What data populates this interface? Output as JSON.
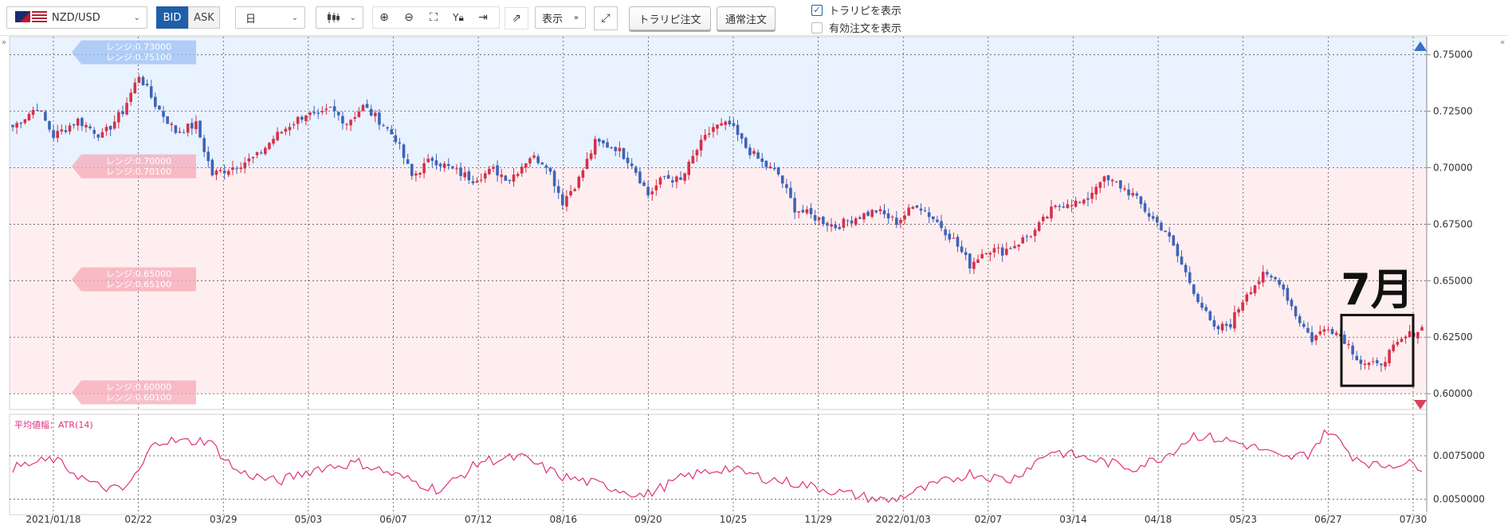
{
  "toolbar": {
    "pair_label": "NZD/USD",
    "bid_label": "BID",
    "ask_label": "ASK",
    "timeframe_value": "日",
    "display_label": "表示",
    "tp_order_label": "トラリピ注文",
    "normal_order_label": "通常注文",
    "show_trap_label": "トラリピを表示",
    "show_active_label": "有効注文を表示"
  },
  "chart": {
    "y_ticks": [
      "0.75000",
      "0.72500",
      "0.70000",
      "0.67500",
      "0.65000",
      "0.62500",
      "0.60000"
    ],
    "x_ticks": [
      "2021/01/18",
      "02/22",
      "03/29",
      "05/03",
      "06/07",
      "07/12",
      "08/16",
      "09/20",
      "10/25",
      "11/29",
      "2022/01/03",
      "02/07",
      "03/14",
      "04/18",
      "05/23",
      "06/27",
      "07/30"
    ],
    "annotation": "7月",
    "range_tags": [
      {
        "line1": "レンジ:0.73000",
        "line2": "レンジ:0.75100"
      },
      {
        "line1": "レンジ:0.70000",
        "line2": "レンジ:0.70100"
      },
      {
        "line1": "レンジ:0.65000",
        "line2": "レンジ:0.65100"
      },
      {
        "line1": "レンジ:0.60000",
        "line2": "レンジ:0.60100"
      }
    ]
  },
  "indicator": {
    "title": "平均値幅：ATR(14)",
    "y_ticks": [
      "0.0075000",
      "0.0050000"
    ]
  },
  "chart_data": {
    "type": "candlestick",
    "ylim": [
      0.593,
      0.758
    ],
    "indicator_ylim": [
      0.0043,
      0.0097
    ],
    "bands": [
      {
        "from": 0.7,
        "to": 0.758,
        "color": "#e9f2ff"
      },
      {
        "from": 0.6,
        "to": 0.7,
        "color": "#ffeef0"
      }
    ],
    "close_path": [
      {
        "i": 0,
        "v": 0.718
      },
      {
        "i": 6,
        "v": 0.727
      },
      {
        "i": 10,
        "v": 0.714
      },
      {
        "i": 16,
        "v": 0.721
      },
      {
        "i": 22,
        "v": 0.714
      },
      {
        "i": 27,
        "v": 0.725
      },
      {
        "i": 31,
        "v": 0.741
      },
      {
        "i": 35,
        "v": 0.728
      },
      {
        "i": 40,
        "v": 0.716
      },
      {
        "i": 45,
        "v": 0.719
      },
      {
        "i": 49,
        "v": 0.697
      },
      {
        "i": 55,
        "v": 0.701
      },
      {
        "i": 60,
        "v": 0.705
      },
      {
        "i": 64,
        "v": 0.713
      },
      {
        "i": 68,
        "v": 0.719
      },
      {
        "i": 72,
        "v": 0.724
      },
      {
        "i": 75,
        "v": 0.722
      },
      {
        "i": 78,
        "v": 0.726
      },
      {
        "i": 82,
        "v": 0.72
      },
      {
        "i": 86,
        "v": 0.727
      },
      {
        "i": 90,
        "v": 0.721
      },
      {
        "i": 94,
        "v": 0.713
      },
      {
        "i": 98,
        "v": 0.696
      },
      {
        "i": 103,
        "v": 0.704
      },
      {
        "i": 108,
        "v": 0.699
      },
      {
        "i": 113,
        "v": 0.695
      },
      {
        "i": 118,
        "v": 0.699
      },
      {
        "i": 122,
        "v": 0.695
      },
      {
        "i": 127,
        "v": 0.705
      },
      {
        "i": 131,
        "v": 0.702
      },
      {
        "i": 135,
        "v": 0.685
      },
      {
        "i": 139,
        "v": 0.695
      },
      {
        "i": 143,
        "v": 0.711
      },
      {
        "i": 148,
        "v": 0.709
      },
      {
        "i": 152,
        "v": 0.702
      },
      {
        "i": 156,
        "v": 0.688
      },
      {
        "i": 160,
        "v": 0.696
      },
      {
        "i": 164,
        "v": 0.694
      },
      {
        "i": 168,
        "v": 0.708
      },
      {
        "i": 172,
        "v": 0.718
      },
      {
        "i": 176,
        "v": 0.719
      },
      {
        "i": 180,
        "v": 0.709
      },
      {
        "i": 184,
        "v": 0.702
      },
      {
        "i": 188,
        "v": 0.697
      },
      {
        "i": 192,
        "v": 0.682
      },
      {
        "i": 197,
        "v": 0.678
      },
      {
        "i": 202,
        "v": 0.674
      },
      {
        "i": 207,
        "v": 0.678
      },
      {
        "i": 212,
        "v": 0.681
      },
      {
        "i": 217,
        "v": 0.676
      },
      {
        "i": 222,
        "v": 0.684
      },
      {
        "i": 227,
        "v": 0.676
      },
      {
        "i": 231,
        "v": 0.668
      },
      {
        "i": 235,
        "v": 0.657
      },
      {
        "i": 239,
        "v": 0.664
      },
      {
        "i": 243,
        "v": 0.663
      },
      {
        "i": 247,
        "v": 0.667
      },
      {
        "i": 251,
        "v": 0.672
      },
      {
        "i": 255,
        "v": 0.681
      },
      {
        "i": 259,
        "v": 0.685
      },
      {
        "i": 263,
        "v": 0.684
      },
      {
        "i": 267,
        "v": 0.695
      },
      {
        "i": 271,
        "v": 0.693
      },
      {
        "i": 275,
        "v": 0.688
      },
      {
        "i": 279,
        "v": 0.679
      },
      {
        "i": 283,
        "v": 0.672
      },
      {
        "i": 287,
        "v": 0.657
      },
      {
        "i": 291,
        "v": 0.642
      },
      {
        "i": 295,
        "v": 0.628
      },
      {
        "i": 299,
        "v": 0.631
      },
      {
        "i": 303,
        "v": 0.645
      },
      {
        "i": 307,
        "v": 0.652
      },
      {
        "i": 311,
        "v": 0.65
      },
      {
        "i": 315,
        "v": 0.635
      },
      {
        "i": 319,
        "v": 0.624
      },
      {
        "i": 323,
        "v": 0.63
      },
      {
        "i": 327,
        "v": 0.624
      },
      {
        "i": 331,
        "v": 0.614
      },
      {
        "i": 335,
        "v": 0.612
      },
      {
        "i": 338,
        "v": 0.618
      },
      {
        "i": 342,
        "v": 0.625
      },
      {
        "i": 346,
        "v": 0.629
      }
    ],
    "atr_path": [
      {
        "i": 0,
        "v": 0.0068
      },
      {
        "i": 10,
        "v": 0.0073
      },
      {
        "i": 20,
        "v": 0.0058
      },
      {
        "i": 27,
        "v": 0.0055
      },
      {
        "i": 31,
        "v": 0.0066
      },
      {
        "i": 35,
        "v": 0.0084
      },
      {
        "i": 42,
        "v": 0.0083
      },
      {
        "i": 48,
        "v": 0.0084
      },
      {
        "i": 55,
        "v": 0.0066
      },
      {
        "i": 65,
        "v": 0.006
      },
      {
        "i": 75,
        "v": 0.0068
      },
      {
        "i": 85,
        "v": 0.0071
      },
      {
        "i": 95,
        "v": 0.0063
      },
      {
        "i": 105,
        "v": 0.0055
      },
      {
        "i": 115,
        "v": 0.0072
      },
      {
        "i": 125,
        "v": 0.0074
      },
      {
        "i": 135,
        "v": 0.0063
      },
      {
        "i": 145,
        "v": 0.0058
      },
      {
        "i": 155,
        "v": 0.0052
      },
      {
        "i": 165,
        "v": 0.0063
      },
      {
        "i": 175,
        "v": 0.0068
      },
      {
        "i": 185,
        "v": 0.0062
      },
      {
        "i": 195,
        "v": 0.0058
      },
      {
        "i": 205,
        "v": 0.0053
      },
      {
        "i": 215,
        "v": 0.0049
      },
      {
        "i": 225,
        "v": 0.0057
      },
      {
        "i": 235,
        "v": 0.0065
      },
      {
        "i": 245,
        "v": 0.0061
      },
      {
        "i": 255,
        "v": 0.0078
      },
      {
        "i": 265,
        "v": 0.0073
      },
      {
        "i": 275,
        "v": 0.0068
      },
      {
        "i": 283,
        "v": 0.0075
      },
      {
        "i": 290,
        "v": 0.0087
      },
      {
        "i": 300,
        "v": 0.0083
      },
      {
        "i": 306,
        "v": 0.0079
      },
      {
        "i": 312,
        "v": 0.0073
      },
      {
        "i": 318,
        "v": 0.0076
      },
      {
        "i": 323,
        "v": 0.009
      },
      {
        "i": 329,
        "v": 0.0075
      },
      {
        "i": 335,
        "v": 0.0069
      },
      {
        "i": 341,
        "v": 0.0071
      },
      {
        "i": 346,
        "v": 0.0069
      }
    ]
  }
}
